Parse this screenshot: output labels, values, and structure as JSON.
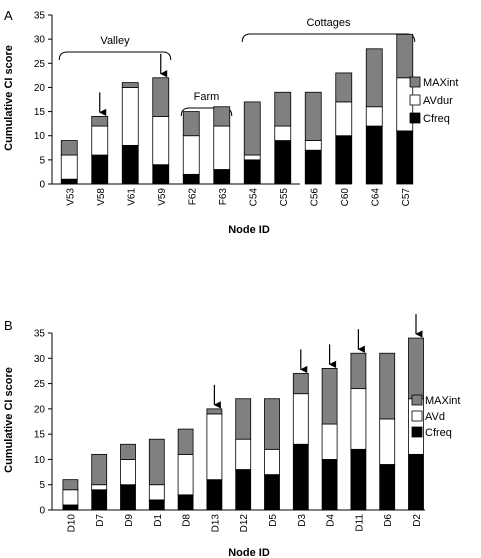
{
  "chart_data": [
    {
      "type": "bar",
      "stacked": true,
      "panel_label": "A",
      "ylabel": "Cumulative CI score",
      "xlabel": "Node ID",
      "ylim": [
        0,
        35
      ],
      "yticks": [
        0,
        5,
        10,
        15,
        20,
        25,
        30,
        35
      ],
      "categories": [
        "V53",
        "V58",
        "V61",
        "V59",
        "F62",
        "F63",
        "C54",
        "C55",
        "C56",
        "C60",
        "C64",
        "C57"
      ],
      "series": [
        {
          "name": "Cfreq",
          "color": "#000000",
          "values": [
            1,
            6,
            8,
            4,
            2,
            3,
            5,
            9,
            7,
            10,
            12,
            11
          ]
        },
        {
          "name": "AVdur",
          "color": "#ffffff",
          "values": [
            5,
            6,
            12,
            10,
            8,
            9,
            1,
            3,
            2,
            7,
            4,
            11
          ]
        },
        {
          "name": "MAXint",
          "color": "#808080",
          "values": [
            3,
            2,
            1,
            8,
            5,
            4,
            11,
            7,
            10,
            6,
            12,
            9
          ]
        }
      ],
      "groups": [
        {
          "label": "Valley",
          "from": "V53",
          "to": "V59"
        },
        {
          "label": "Farm",
          "from": "F62",
          "to": "F63"
        },
        {
          "label": "Cottages",
          "from": "C54",
          "to": "C57"
        }
      ],
      "arrows": [
        "V58",
        "V59"
      ],
      "grid": false,
      "legend_position": "right"
    },
    {
      "type": "bar",
      "stacked": true,
      "panel_label": "B",
      "ylabel": "Cumulative CI score",
      "xlabel": "Node ID",
      "ylim": [
        0,
        35
      ],
      "yticks": [
        0,
        5,
        10,
        15,
        20,
        25,
        30,
        35
      ],
      "categories": [
        "D10",
        "D7",
        "D9",
        "D1",
        "D8",
        "D13",
        "D12",
        "D5",
        "D3",
        "D4",
        "D11",
        "D6",
        "D2"
      ],
      "series": [
        {
          "name": "Cfreq",
          "color": "#000000",
          "values": [
            1,
            4,
            5,
            2,
            3,
            6,
            8,
            7,
            13,
            10,
            12,
            9,
            11
          ]
        },
        {
          "name": "AVd",
          "color": "#ffffff",
          "values": [
            3,
            1,
            5,
            3,
            8,
            13,
            6,
            5,
            10,
            7,
            12,
            9,
            11
          ]
        },
        {
          "name": "MAXint",
          "color": "#808080",
          "values": [
            2,
            6,
            3,
            9,
            5,
            1,
            8,
            10,
            4,
            11,
            7,
            13,
            12
          ]
        }
      ],
      "arrows": [
        "D13",
        "D3",
        "D4",
        "D11",
        "D2"
      ],
      "grid": false,
      "legend_position": "right"
    }
  ]
}
